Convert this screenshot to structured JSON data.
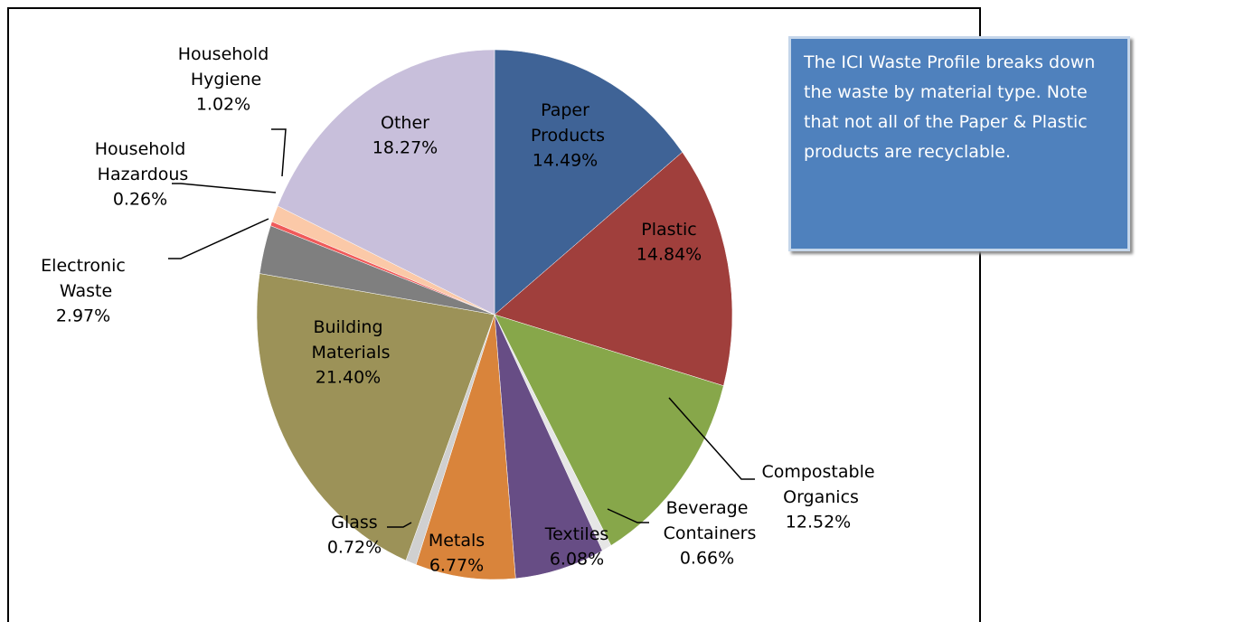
{
  "chart_data": {
    "type": "pie",
    "categories": [
      "Paper Products",
      "Plastic",
      "Compostable Organics",
      "Beverage Containers",
      "Textiles",
      "Metals",
      "Glass",
      "Building Materials",
      "Electronic Waste",
      "Household Hazardous",
      "Household Hygiene",
      "Other"
    ],
    "values": [
      14.49,
      14.84,
      12.52,
      0.66,
      6.08,
      6.77,
      0.72,
      21.4,
      2.97,
      0.26,
      1.02,
      18.27
    ],
    "value_labels": [
      "14.49%",
      "14.84%",
      "12.52%",
      "0.66%",
      "6.08%",
      "6.77%",
      "0.72%",
      "21.40%",
      "2.97%",
      "0.26%",
      "1.02%",
      "18.27%"
    ],
    "colors": [
      "#3f6396",
      "#a03f3c",
      "#87a74a",
      "#e6e6e6",
      "#674d85",
      "#d9843b",
      "#d0d0d0",
      "#9c9258",
      "#7f7f7f",
      "#f05a5a",
      "#fbc9a8",
      "#c8bfdb"
    ],
    "annotation": "The ICI Waste Profile breaks down the waste by material type.  Note that not all of the Paper & Plastic products are recyclable."
  }
}
